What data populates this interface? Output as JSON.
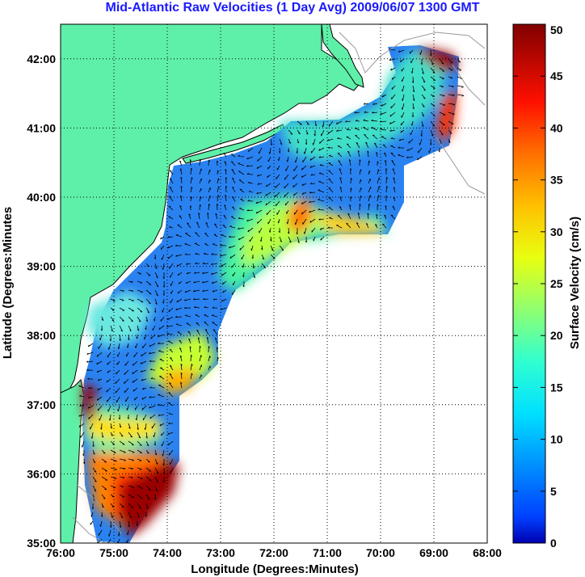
{
  "title": "Mid-Atlantic Raw Velocities (1 Day Avg) 2009/06/07 1300 GMT",
  "chart_data": {
    "type": "heatmap",
    "xlabel": "Longitude (Degrees:Minutes)",
    "ylabel": "Latitude (Degrees:Minutes",
    "x_ticks": [
      "76:00",
      "75:00",
      "74:00",
      "73:00",
      "72:00",
      "71:00",
      "70:00",
      "69:00",
      "68:00"
    ],
    "y_ticks": [
      "42:00",
      "41:00",
      "40:00",
      "39:00",
      "38:00",
      "37:00",
      "36:00",
      "35:00"
    ],
    "xlim": [
      -76,
      -68
    ],
    "ylim": [
      35,
      42.5
    ],
    "grid": true,
    "colorbar": {
      "label": "Surface Velocity (cm/s)",
      "ticks": [
        "50",
        "45",
        "40",
        "35",
        "30",
        "25",
        "20",
        "15",
        "10",
        "5",
        "0"
      ],
      "range": [
        0,
        50
      ],
      "colormap": "jet"
    },
    "colors": {
      "land": "#5ef0a8",
      "title": "#1a1aff",
      "low": "#1f6fff",
      "high": "#8b0000"
    }
  }
}
